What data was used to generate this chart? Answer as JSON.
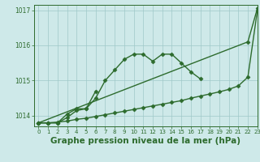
{
  "title": "Graphe pression niveau de la mer (hPa)",
  "x": [
    0,
    1,
    2,
    3,
    4,
    5,
    6,
    7,
    8,
    9,
    10,
    11,
    12,
    13,
    14,
    15,
    16,
    17,
    18,
    19,
    20,
    21,
    22,
    23
  ],
  "bell_line": [
    1013.8,
    1013.8,
    1013.8,
    1013.95,
    1014.15,
    1014.2,
    1014.5,
    1015.0,
    1015.3,
    1015.6,
    1015.75,
    1015.75,
    1015.55,
    1015.75,
    1015.75,
    1015.5,
    1015.25,
    1015.05,
    null,
    null,
    null,
    null,
    null,
    null
  ],
  "spike_line": [
    1013.8,
    1013.8,
    1013.8,
    1014.05,
    1014.2,
    1014.2,
    1014.7,
    null,
    null,
    null,
    null,
    null,
    null,
    null,
    null,
    null,
    null,
    null,
    null,
    null,
    null,
    null,
    null,
    null
  ],
  "lower_straight": [
    1013.8,
    1013.8,
    1013.82,
    1013.85,
    1013.9,
    1013.93,
    1013.98,
    1014.03,
    1014.08,
    1014.13,
    1014.18,
    1014.23,
    1014.28,
    1014.33,
    1014.38,
    1014.43,
    1014.5,
    1014.56,
    1014.62,
    1014.68,
    1014.75,
    1014.85,
    1015.1,
    1017.0
  ],
  "upper_straight": [
    1013.8,
    null,
    null,
    null,
    null,
    null,
    null,
    null,
    null,
    null,
    null,
    null,
    null,
    null,
    null,
    null,
    null,
    null,
    null,
    null,
    null,
    null,
    1016.1,
    1017.05
  ],
  "xlim": [
    -0.5,
    23
  ],
  "ylim": [
    1013.7,
    1017.15
  ],
  "yticks": [
    1014,
    1015,
    1016,
    1017
  ],
  "xticks": [
    0,
    1,
    2,
    3,
    4,
    5,
    6,
    7,
    8,
    9,
    10,
    11,
    12,
    13,
    14,
    15,
    16,
    17,
    18,
    19,
    20,
    21,
    22,
    23
  ],
  "bg_color": "#cee9e9",
  "line_color": "#2d6b2d",
  "marker": "D",
  "markersize": 2.5,
  "linewidth": 1.0,
  "grid_color": "#a0c8c8",
  "title_fontsize": 7.5,
  "tick_fontsize": 5.0,
  "ytick_fontsize": 5.5
}
